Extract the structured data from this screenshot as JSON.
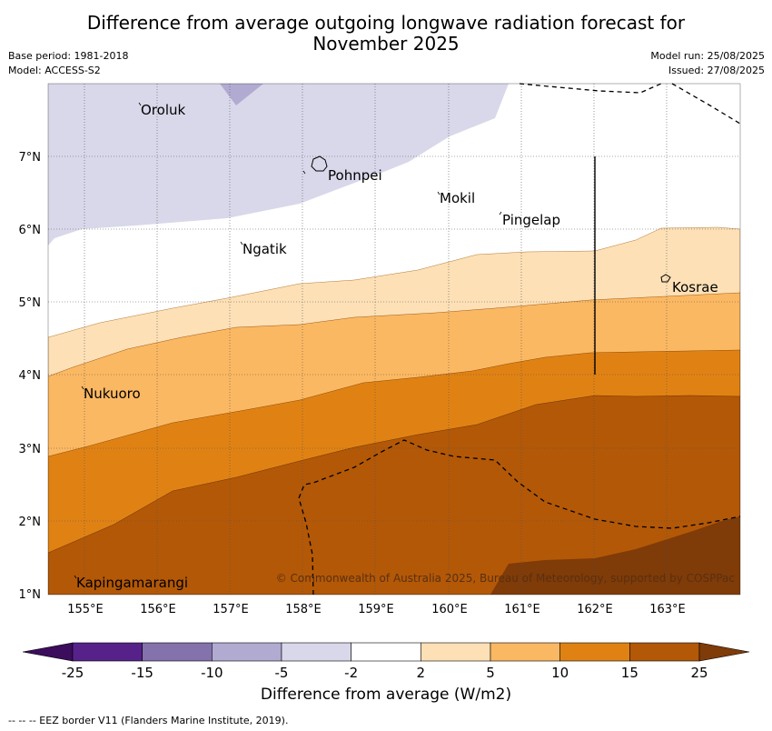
{
  "title_line1": "Difference from average outgoing longwave radiation forecast for",
  "title_line2": "November 2025",
  "meta_left": {
    "base_period": "Base period: 1981-2018",
    "model": "Model: ACCESS-S2"
  },
  "meta_right": {
    "model_run": "Model run: 25/08/2025",
    "issued": "Issued: 27/08/2025"
  },
  "x_ticks": [
    "155°E",
    "156°E",
    "157°E",
    "158°E",
    "159°E",
    "160°E",
    "161°E",
    "162°E",
    "163°E"
  ],
  "y_ticks": [
    "7°N",
    "6°N",
    "5°N",
    "4°N",
    "3°N",
    "2°N",
    "1°N"
  ],
  "places": [
    "Oroluk",
    "Pohnpei",
    "Mokil",
    "Pingelap",
    "Ngatik",
    "Kosrae",
    "Nukuoro",
    "Kapingamarangi"
  ],
  "copyright": "© Commonwealth of Australia 2025, Bureau of Meteorology, supported by COSPPac",
  "colorbar": {
    "ticks": [
      "-25",
      "-15",
      "-10",
      "-5",
      "-2",
      "2",
      "5",
      "10",
      "15",
      "25"
    ],
    "colors": [
      "#3b0d5c",
      "#56228a",
      "#8372ac",
      "#b1abd2",
      "#d8d8ea",
      "#ffffff",
      "#fde0b6",
      "#fbb862",
      "#e08213",
      "#b35807",
      "#7f3b08"
    ],
    "label": "Difference from average (W/m2)"
  },
  "footnote": "--  --  -- EEZ border V11 (Flanders Marine Institute, 2019)."
}
